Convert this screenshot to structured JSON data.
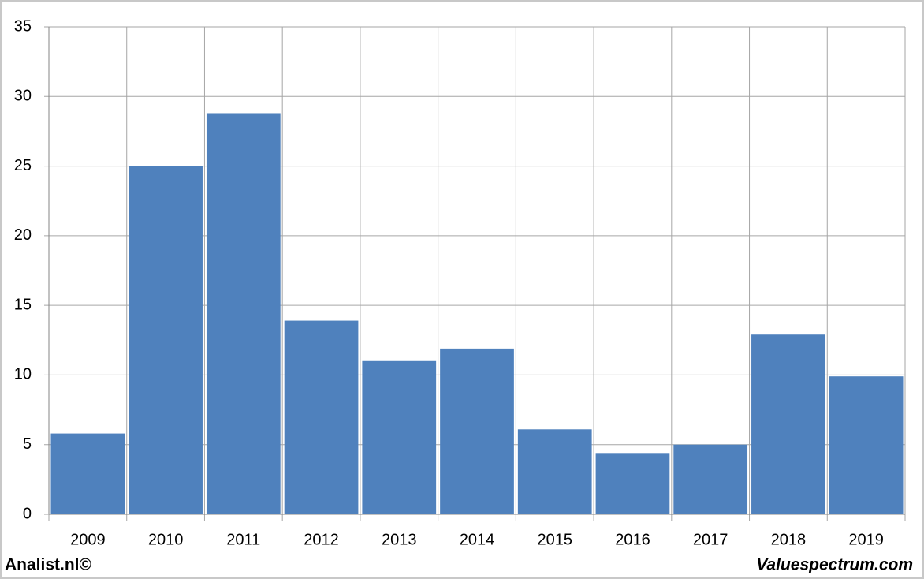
{
  "chart_data": {
    "type": "bar",
    "categories": [
      "2009",
      "2010",
      "2011",
      "2012",
      "2013",
      "2014",
      "2015",
      "2016",
      "2017",
      "2018",
      "2019"
    ],
    "values": [
      5.8,
      25.0,
      28.8,
      13.9,
      11.0,
      11.9,
      6.1,
      4.4,
      5.0,
      12.9,
      9.9
    ],
    "color": "#4f81bd",
    "ylim": [
      0,
      35
    ],
    "yticks": [
      0,
      5,
      10,
      15,
      20,
      25,
      30,
      35
    ],
    "grid": true,
    "credits": [
      "Analist.nl©",
      "Valuespectrum.com"
    ]
  }
}
